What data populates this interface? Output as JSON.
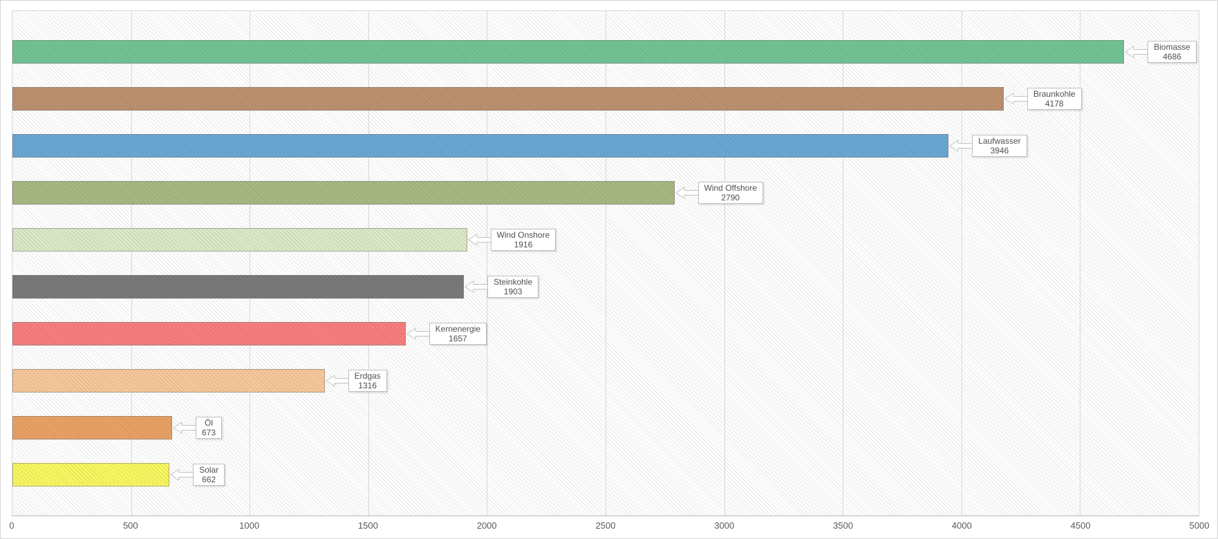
{
  "chart_data": {
    "type": "bar",
    "orientation": "horizontal",
    "title": "",
    "xlabel": "",
    "ylabel": "",
    "xlim": [
      0,
      5000
    ],
    "grid": "vertical",
    "legend": "none",
    "annotation_style": "callout box at bar end showing category name and value",
    "categories": [
      "Biomasse",
      "Braunkohle",
      "Laufwasser",
      "Wind Offshore",
      "Wind Onshore",
      "Steinkohle",
      "Kernenergie",
      "Erdgas",
      "Öl",
      "Solar"
    ],
    "values": [
      4686,
      4178,
      3946,
      2790,
      1916,
      1903,
      1657,
      1316,
      673,
      662
    ],
    "bar_colors": [
      "#72c494",
      "#bd9170",
      "#6aa8d5",
      "#a8b983",
      "#dce8c8",
      "#7a7a7a",
      "#f97e7e",
      "#f6c89b",
      "#e9a265",
      "#f8f762"
    ],
    "x_tick_labels": [
      "0",
      "500",
      "1000",
      "1500",
      "2000",
      "2500",
      "3000",
      "3500",
      "4000",
      "4500",
      "5000"
    ],
    "x_tick_values": [
      0,
      500,
      1000,
      1500,
      2000,
      2500,
      3000,
      3500,
      4000,
      4500,
      5000
    ]
  },
  "style_colors": {
    "gridline": "#d6d6d6",
    "plot_border": "#dadada",
    "axis_line": "#b5b5b5",
    "callout_border": "#bfbfbf",
    "text": "#4f4f4f"
  }
}
